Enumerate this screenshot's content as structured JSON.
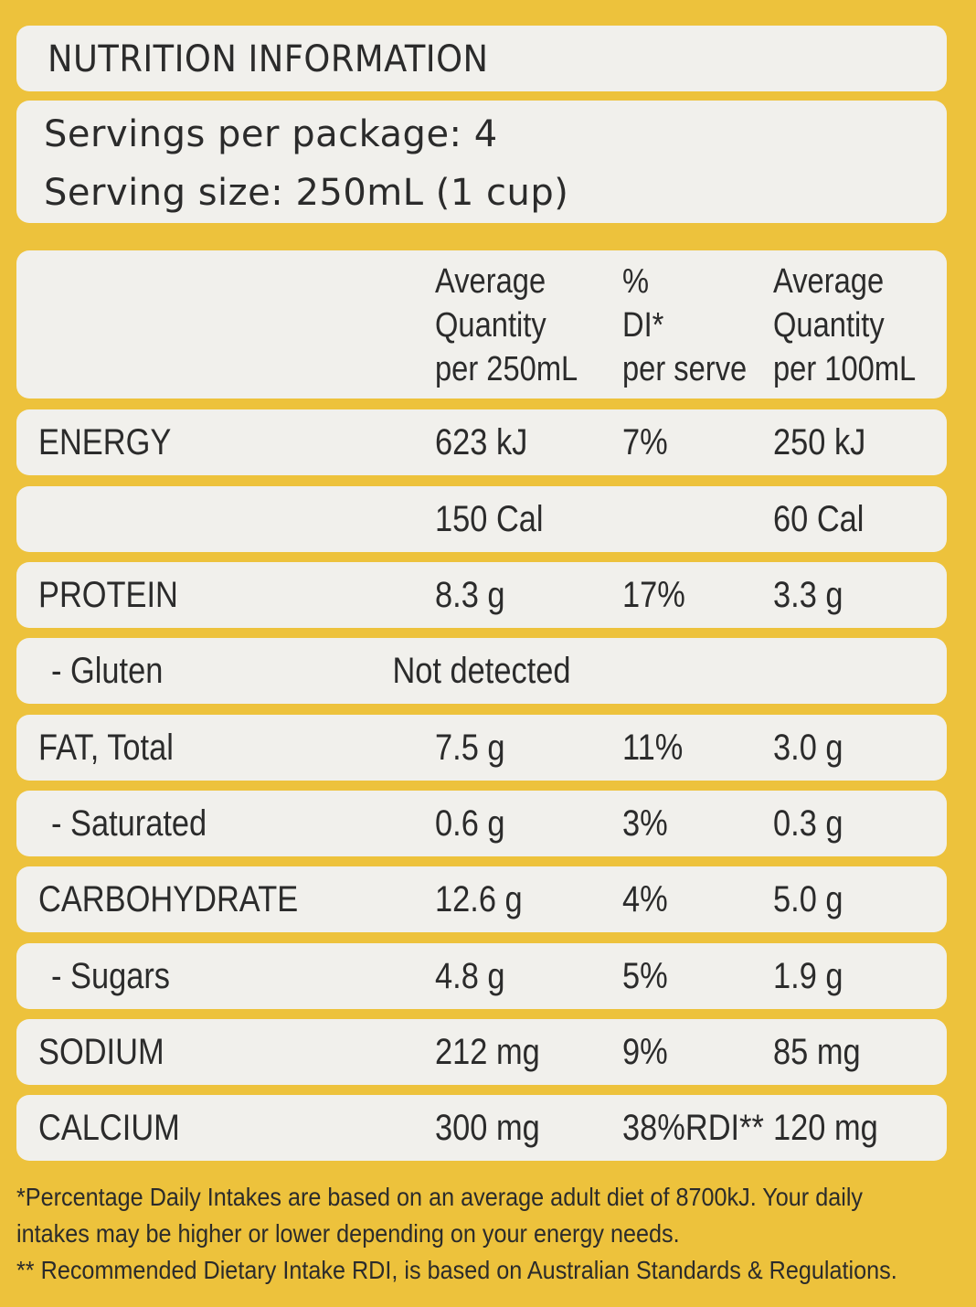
{
  "title": "NUTRITION INFORMATION",
  "servings_per_package": "Servings per package: 4",
  "serving_size": "Serving size: 250mL (1 cup)",
  "columns": {
    "per_serve": [
      "Average",
      "Quantity",
      "per 250mL"
    ],
    "di": [
      "%",
      "DI*",
      "per serve"
    ],
    "per_100": [
      "Average",
      "Quantity",
      "per 100mL"
    ]
  },
  "rows": [
    {
      "label": "ENERGY",
      "per_serve": "623 kJ",
      "di": "7%",
      "per_100": "250 kJ"
    },
    {
      "label": "",
      "per_serve": "150 Cal",
      "di": "",
      "per_100": "60 Cal"
    },
    {
      "label": "PROTEIN",
      "per_serve": "8.3 g",
      "di": "17%",
      "per_100": "3.3 g"
    },
    {
      "label": "- Gluten",
      "span_value": "Not detected"
    },
    {
      "label": "FAT, Total",
      "per_serve": "7.5 g",
      "di": "11%",
      "per_100": "3.0 g"
    },
    {
      "label": "- Saturated",
      "per_serve": "0.6 g",
      "di": "3%",
      "per_100": "0.3 g"
    },
    {
      "label": "CARBOHYDRATE",
      "per_serve": "12.6 g",
      "di": "4%",
      "per_100": "5.0 g"
    },
    {
      "label": "- Sugars",
      "per_serve": "4.8 g",
      "di": "5%",
      "per_100": "1.9 g"
    },
    {
      "label": "SODIUM",
      "per_serve": "212 mg",
      "di": "9%",
      "per_100": "85 mg"
    },
    {
      "label": "CALCIUM",
      "per_serve": "300 mg",
      "di": "38%RDI**",
      "per_100": "120 mg"
    }
  ],
  "footnotes": [
    "*Percentage Daily Intakes are based on an average adult diet of 8700kJ. Your daily",
    "intakes may be higher or lower depending on your energy needs.",
    "** Recommended Dietary Intake RDI, is based on Australian Standards & Regulations."
  ],
  "colors": {
    "background": "#EDC23C",
    "panel": "#F1F0EC",
    "text": "#2b2b2b"
  }
}
